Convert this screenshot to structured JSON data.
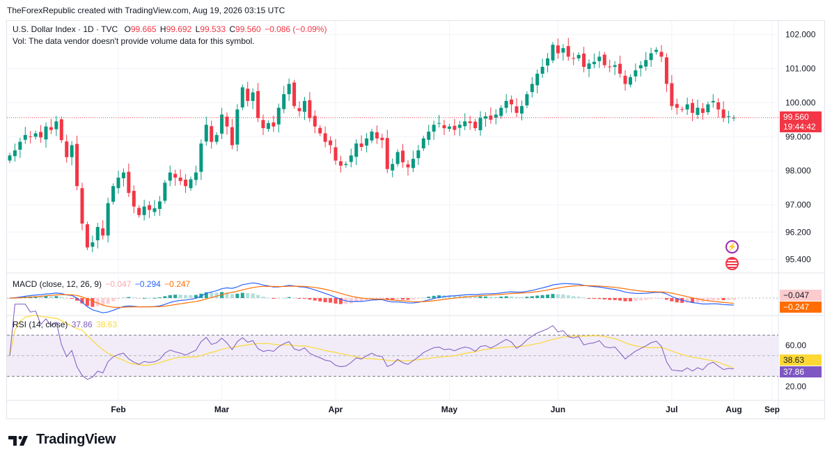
{
  "header": {
    "attribution": "TheForexRepublic created with TradingView.com, Aug 19, 2026 03:15 UTC"
  },
  "legend": {
    "symbol": "U.S. Dollar Index · 1D · TVC",
    "o_label": "O",
    "o_value": "99.665",
    "h_label": "H",
    "h_value": "99.692",
    "l_label": "L",
    "l_value": "99.533",
    "c_label": "C",
    "c_value": "99.560",
    "change": "−0.086 (−0.09%)",
    "vol_note": "Vol: The data vendor doesn't provide volume data for this symbol."
  },
  "price_tag": {
    "value": "99.560",
    "countdown": "19:44:42"
  },
  "macd": {
    "label": "MACD (close, 12, 26, 9)",
    "hist_value": "−0.047",
    "macd_value": "−0.294",
    "signal_value": "−0.247",
    "axis_tag_hist": "−0.047",
    "axis_tag_signal": "−0.247"
  },
  "rsi": {
    "label": "RSI (14, close)",
    "rsi_value": "37.86",
    "ma_value": "38.63",
    "axis_tag_ma": "38.63",
    "axis_tag_rsi": "37.86"
  },
  "colors": {
    "up": "#089981",
    "down": "#f23645",
    "macd": "#2962ff",
    "signal": "#ff6d00",
    "rsi": "#7e57c2",
    "rsi_ma": "#fdd835",
    "rsi_band": "#ede7f6"
  },
  "footer": {
    "brand": "TradingView"
  },
  "chart_data": {
    "type": "candlestick",
    "title": "U.S. Dollar Index · 1D · TVC",
    "price_axis_ticks": [
      "102.000",
      "101.000",
      "100.000",
      "99.000",
      "98.000",
      "97.000",
      "96.200",
      "95.400"
    ],
    "rsi_axis_ticks": [
      "60.00",
      "20.00"
    ],
    "time_axis_labels": [
      "Feb",
      "Mar",
      "Apr",
      "May",
      "Jun",
      "Jul",
      "Aug",
      "Sep"
    ],
    "ylim": [
      95.0,
      102.4
    ],
    "x_dates_start": "2026-01-02",
    "close": [
      98.45,
      98.6,
      98.85,
      99.05,
      99.0,
      99.1,
      98.98,
      99.3,
      99.2,
      99.45,
      98.9,
      98.4,
      98.75,
      97.55,
      96.45,
      95.75,
      95.9,
      96.35,
      96.1,
      97.05,
      97.55,
      97.8,
      97.95,
      97.35,
      96.95,
      96.7,
      96.95,
      96.85,
      96.9,
      97.1,
      97.65,
      97.95,
      97.8,
      97.7,
      97.55,
      97.75,
      97.95,
      98.8,
      99.35,
      98.85,
      99.05,
      99.65,
      99.3,
      98.75,
      99.8,
      100.45,
      100.05,
      100.3,
      99.55,
      99.25,
      99.4,
      99.3,
      99.85,
      100.25,
      100.55,
      99.9,
      99.75,
      100.05,
      99.55,
      99.3,
      99.1,
      98.85,
      98.75,
      98.3,
      98.15,
      98.2,
      98.45,
      98.8,
      98.7,
      98.95,
      99.15,
      98.95,
      98.9,
      98.05,
      98.2,
      98.55,
      98.25,
      98.1,
      98.35,
      98.6,
      98.95,
      99.15,
      99.35,
      99.4,
      99.25,
      99.3,
      99.2,
      99.35,
      99.45,
      99.4,
      99.25,
      99.55,
      99.6,
      99.5,
      99.65,
      99.85,
      100.05,
      99.95,
      99.7,
      99.9,
      100.25,
      100.55,
      100.85,
      101.05,
      101.3,
      101.7,
      101.45,
      101.6,
      101.35,
      101.3,
      101.4,
      101.05,
      101.15,
      101.2,
      101.35,
      101.1,
      101.05,
      101.1,
      100.85,
      100.55,
      100.75,
      100.95,
      101.1,
      101.25,
      101.45,
      101.55,
      101.35,
      100.55,
      99.9,
      99.85,
      99.8,
      99.95,
      99.7,
      99.85,
      99.7,
      99.95,
      100.05,
      99.8,
      99.55,
      99.6,
      99.56
    ],
    "macd_series": [
      "MACD",
      "Signal",
      "Histogram"
    ],
    "rsi_band": [
      30,
      70
    ]
  }
}
